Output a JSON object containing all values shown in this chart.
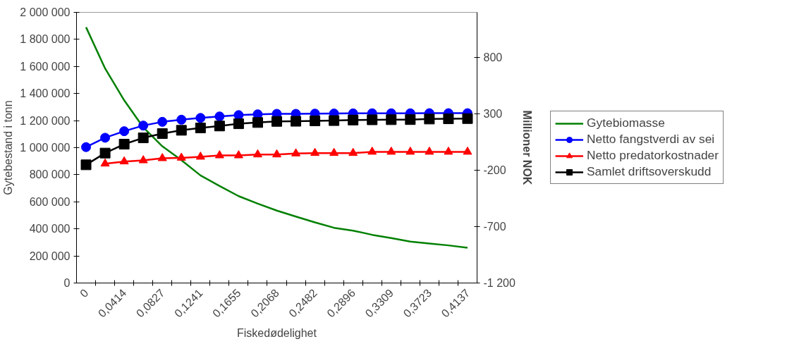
{
  "chart_data": {
    "type": "line",
    "xlabel": "Fiskedødelighet",
    "ylabel": "Gytebestand i tonn",
    "y2label": "Millioner NOK",
    "categories": [
      "0",
      null,
      "0,0414",
      null,
      "0,0827",
      null,
      "0,1241",
      null,
      "0,1655",
      null,
      "0,2068",
      null,
      "0,2482",
      null,
      "0,2896",
      null,
      "0,3309",
      null,
      "0,3723",
      null,
      "0,4137"
    ],
    "ylim": [
      0,
      2000000
    ],
    "yticks": [
      0,
      {
        "value": 200000,
        "label": "200 000"
      },
      {
        "value": 400000,
        "label": "400 000"
      },
      {
        "value": 600000,
        "label": "600 000"
      },
      {
        "value": 800000,
        "label": "800 000"
      },
      {
        "value": 1000000,
        "label": "1 000 000"
      },
      {
        "value": 1200000,
        "label": "1 200 000"
      },
      {
        "value": 1400000,
        "label": "1 400 000"
      },
      {
        "value": 1600000,
        "label": "1 600 000"
      },
      {
        "value": 1800000,
        "label": "1 800 000"
      },
      {
        "value": 2000000,
        "label": "2 000 000"
      }
    ],
    "y2lim": [
      -1200,
      1200
    ],
    "y2ticks": [
      {
        "value": -1200,
        "label": "-1 200"
      },
      -700,
      -200,
      300,
      800
    ],
    "legend": "right",
    "grid": false,
    "series": [
      {
        "name": "Gytebiomasse",
        "color": "#008000",
        "marker": "none",
        "values": [
          1890000,
          1585000,
          1350000,
          1150000,
          1010000,
          908000,
          795000,
          717000,
          642000,
          587000,
          535000,
          491000,
          448000,
          408000,
          387000,
          356000,
          332000,
          306000,
          292000,
          278000,
          260000
        ]
      },
      {
        "name": "Netto fangstverdi av sei",
        "color": "#0000ff",
        "marker": "circle",
        "axis": "y2",
        "values": [
          5,
          88,
          146,
          196,
          229,
          248,
          264,
          277,
          289,
          296,
          300,
          300,
          302,
          303,
          304,
          305,
          305,
          305,
          306,
          306,
          306
        ]
      },
      {
        "name": "Netto predatorkostnader",
        "color": "#ff0000",
        "marker": "triangle",
        "axis": "y2",
        "values": [
          null,
          -142,
          -123,
          -113,
          -94,
          -90,
          -81,
          -69,
          -69,
          -61,
          -61,
          -52,
          -48,
          -48,
          -48,
          -37,
          -37,
          -37,
          -37,
          -37,
          -37
        ]
      },
      {
        "name": "Samlet driftsoverskudd",
        "color": "#000000",
        "marker": "square",
        "axis": "y2",
        "values": [
          -152,
          -48,
          31,
          87,
          125,
          154,
          175,
          192,
          212,
          223,
          233,
          234,
          238,
          240,
          245,
          247,
          248,
          249,
          254,
          256,
          258
        ]
      }
    ]
  }
}
